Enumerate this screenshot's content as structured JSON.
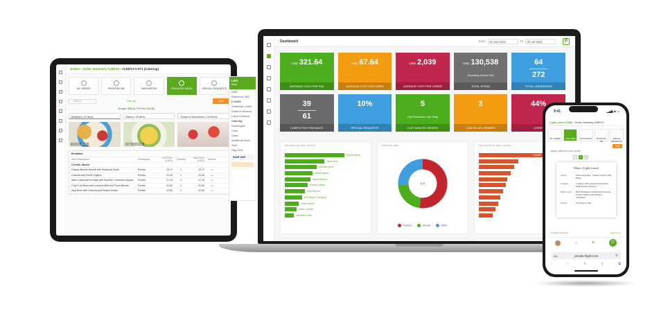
{
  "tablet": {
    "breadcrumb": {
      "orders": "Orders",
      "summary": "Order Summary #LBDY2",
      "current": "#LBDY2-CAT1 (Catering)"
    },
    "cards": [
      "MY ORDER",
      "PROPOSE ME",
      "FAVOURITES",
      "PROVIDER MENU",
      "SPECIAL REQUESTS"
    ],
    "search_placeholder": "Search",
    "filter_label": "Filter by",
    "add_label": "ADD",
    "budget": {
      "budget_label": "Budget:",
      "budget_val": "$55.20",
      "per_pax_label": "Per Pax:",
      "per_pax_val": "$13.80"
    },
    "categories": [
      "Breakfast • 22 Items",
      "Bakery • 23 Items",
      "Snacks & Sandwiches • 10 Pieces"
    ],
    "food_labels": [
      "Cereals, Muesli",
      "Eggs, Omelettes",
      ""
    ],
    "table": {
      "caption": "Breakfast",
      "headers": [
        "Item Description",
        "Packaging",
        "Unit Price (USD)",
        "Quantity",
        "Total Price (USD)",
        "Actions"
      ],
      "group": "Cereals, Muesli",
      "rows": [
        {
          "desc": "Classic Bircher Muesli with Seasonal Fruits",
          "pack": "Portion",
          "price": "19.17",
          "qty": "1",
          "total": "19.17"
        },
        {
          "desc": "Granola and Greek Yoghurt",
          "pack": "Portion",
          "price": "23.45",
          "qty": "1",
          "total": "23.45"
        },
        {
          "desc": "Warm Oatmeal Porridge with Sautéed Cinnamon Apples",
          "pack": "Portion",
          "price": "17.25",
          "qty": "1",
          "total": "17.25"
        },
        {
          "desc": "Chia Fruit Bowl with Coconut Milk and Fresh Berries",
          "pack": "Portion",
          "price": "22.50",
          "qty": "1",
          "total": "22.50"
        },
        {
          "desc": "Açai Bowl with Granola and Peanut Butter",
          "pack": "Portion",
          "price": "22.80",
          "qty": "1",
          "total": "22.80"
        }
      ]
    },
    "side": {
      "title": "LBG",
      "subtitle": "Paris",
      "lines": [
        "Draft",
        "Reference LBG",
        "F-GZBY",
        "Gulfstream G650",
        "Dubai to Moscow",
        "Client Currency"
      ],
      "section": "Catering",
      "items": [
        "Passengers",
        "Crew",
        "Cabin",
        "Additional Items",
        "Total"
      ],
      "flag_time": "Flag Time",
      "save_label": "SAVE AND"
    }
  },
  "dashboard": {
    "title": "Dashboard",
    "from_label": "From",
    "from_date": "01 Jan 2022",
    "to_label": "To",
    "to_date": "01 Jul 2022",
    "kpis": [
      {
        "prefix": "USD",
        "value": "321.64",
        "line2": "",
        "sub": "",
        "label": "AVERAGE COST PER PAX",
        "color": "#4cae1d"
      },
      {
        "prefix": "USD",
        "value": "67.64",
        "line2": "",
        "sub": "",
        "label": "AVERAGE COST PER CREW",
        "color": "#f39c12"
      },
      {
        "prefix": "USD",
        "value": "2,039",
        "line2": "",
        "sub": "",
        "label": "AVERAGE COST PER ORDER",
        "color": "#c1264c"
      },
      {
        "prefix": "USD",
        "value": "130,538",
        "line2": "",
        "sub": "(Excluding Service Fee)",
        "label": "TOTAL SPEND",
        "color": "#707070"
      },
      {
        "prefix": "",
        "value": "64",
        "line2": "272",
        "sub": "",
        "label": "TOTAL ORDERS/PAX",
        "color": "#3f9fde"
      },
      {
        "prefix": "",
        "value": "39",
        "line2": "61",
        "sub": "",
        "label": "COMPLETED FEEDBACK",
        "color": "#6a6a6a"
      },
      {
        "prefix": "",
        "value": "10%",
        "line2": "",
        "sub": "",
        "label": "SPECIAL REQUESTS",
        "color": "#3f9fde"
      },
      {
        "prefix": "",
        "value": "5",
        "line2": "",
        "sub": "(<8h Production Lead Time)",
        "label": "LAST MINUTE ORDERS",
        "color": "#4cae1d"
      },
      {
        "prefix": "",
        "value": "3",
        "line2": "",
        "sub": "",
        "label": "CANCELLED ORDERS",
        "color": "#f39c12"
      },
      {
        "prefix": "",
        "value": "44%",
        "line2": "",
        "sub": "",
        "label": "USERS",
        "color": "#c1264c"
      }
    ],
    "panel_titles": [
      "Top users by order volume",
      "Orders by type",
      "Top aircraft by order volume"
    ],
    "green_bars": [
      {
        "label": "",
        "out": "Roselie Malon",
        "pct": 93
      },
      {
        "label": "",
        "out": "Jaime Ruiz",
        "pct": 62
      },
      {
        "label": "",
        "out": "Michael Harris",
        "pct": 50
      },
      {
        "label": "",
        "out": "Mikela Manko",
        "pct": 44
      },
      {
        "label": "",
        "out": "Maria Martinez",
        "pct": 40
      },
      {
        "label": "",
        "out": "Sophie Durand",
        "pct": 36
      },
      {
        "label": "",
        "out": "Nina Petrovic",
        "pct": 31
      },
      {
        "label": "",
        "out": "Hemming & Company",
        "pct": 27
      },
      {
        "label": "",
        "out": "Leah Hoveda",
        "pct": 22
      },
      {
        "label": "",
        "out": "Amber Gordon",
        "pct": 18
      },
      {
        "label": "",
        "out": "Sebastian Huss",
        "pct": 14
      }
    ],
    "donut": {
      "center": "64",
      "slices": [
        {
          "name": "Charter",
          "value": 52,
          "color": "#c1262c"
        },
        {
          "name": "Owned",
          "value": 22,
          "color": "#4cae1d"
        },
        {
          "name": "Other",
          "value": 26,
          "color": "#3f9fde"
        }
      ]
    },
    "orange_bars": [
      {
        "label": "",
        "out": "F-GZBY",
        "pct": 100
      },
      {
        "label": "",
        "out": "",
        "pct": 62
      },
      {
        "label": "",
        "out": "",
        "pct": 55
      },
      {
        "label": "",
        "out": "",
        "pct": 50
      },
      {
        "label": "",
        "out": "",
        "pct": 45
      },
      {
        "label": "",
        "out": "",
        "pct": 42
      },
      {
        "label": "",
        "out": "",
        "pct": 38
      },
      {
        "label": "",
        "out": "",
        "pct": 34
      },
      {
        "label": "",
        "out": "",
        "pct": 30
      },
      {
        "label": "",
        "out": "",
        "pct": 26
      },
      {
        "label": "",
        "out": "",
        "pct": 22
      }
    ]
  },
  "phone": {
    "time": "9:41",
    "status": "▂▄▆ ◉ ▭",
    "breadcrumb": "Light Lunch (THR)",
    "breadcrumb_sub": "Order Summary #LBDY2",
    "cards": [
      "MY ORDER",
      "PROVIDER MENU",
      "FAVOURITES",
      "PROPOSE ME",
      "SPECIAL REQUESTS"
    ],
    "add_label": "ADD",
    "budget_text": "Budget: $55.20  Per Pax: $13.80",
    "pages": [
      "1",
      "2",
      "3"
    ],
    "menu": {
      "title": "Menu | Light Lunch",
      "rows": [
        {
          "k": "Starter",
          "v": "Mixed Appetizer / Salmon Tartare, Mini Blinis"
        },
        {
          "k": "Canapés",
          "v": "Compote with Seasonal Fresh Fruits, Mini Desserts (Sweets)"
        },
        {
          "k": "Main Course",
          "v": "Beef Wellington with Roasted Potatoes, Grilled Salmon with Steamed Vegetables"
        },
        {
          "k": "Dessert",
          "v": "NY Cheese Cake"
        }
      ]
    },
    "footer_left": "Provider favourites",
    "footer_right": "Clear menu",
    "url": "private-flight.com",
    "aa": "AA"
  }
}
